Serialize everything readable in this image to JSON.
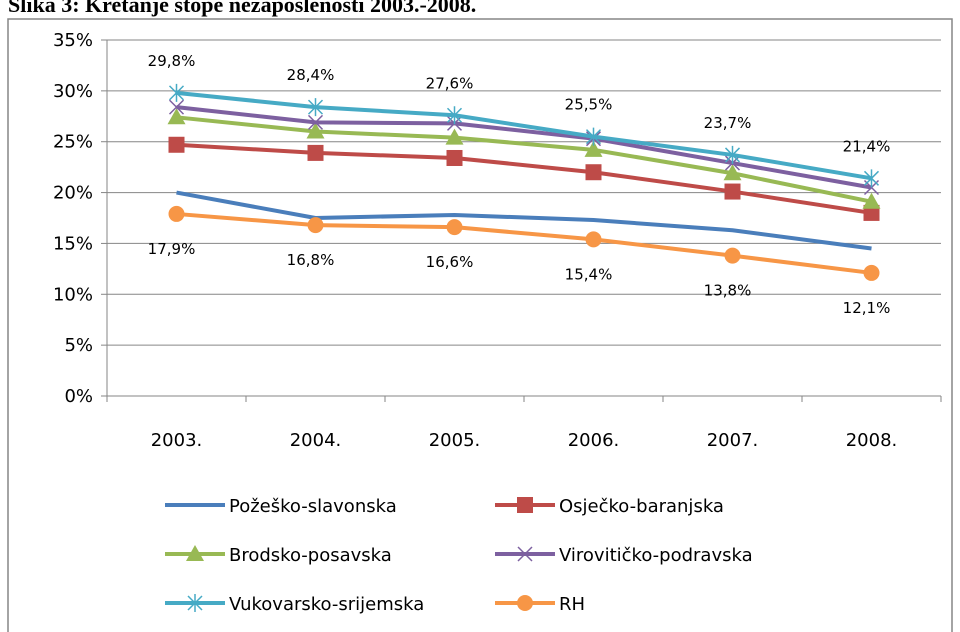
{
  "chart_data": {
    "type": "line",
    "title": "Slika 3: Kretanje stope nezaposlenosti 2003.-2008.",
    "categories": [
      "2003.",
      "2004.",
      "2005.",
      "2006.",
      "2007.",
      "2008."
    ],
    "ylim": [
      0,
      35
    ],
    "yticks": [
      {
        "value": 0,
        "label": "0%"
      },
      {
        "value": 5,
        "label": "5%"
      },
      {
        "value": 10,
        "label": "10%"
      },
      {
        "value": 15,
        "label": "15%"
      },
      {
        "value": 20,
        "label": "20%"
      },
      {
        "value": 25,
        "label": "25%"
      },
      {
        "value": 30,
        "label": "30%"
      },
      {
        "value": 35,
        "label": "35%"
      }
    ],
    "grid": true,
    "legend": "bottom",
    "series": [
      {
        "name": "Požeško-slavonska",
        "color": "#4a7ebb",
        "marker": "none",
        "values": [
          20.0,
          17.5,
          17.8,
          17.3,
          16.3,
          14.5
        ]
      },
      {
        "name": "Osječko-baranjska",
        "color": "#be4b48",
        "marker": "square",
        "values": [
          24.7,
          23.9,
          23.4,
          22.0,
          20.1,
          18.0
        ]
      },
      {
        "name": "Brodsko-posavska",
        "color": "#98b954",
        "marker": "triangle",
        "values": [
          27.4,
          26.0,
          25.4,
          24.2,
          21.9,
          19.1
        ]
      },
      {
        "name": "Virovitičko-podravska",
        "color": "#7d60a0",
        "marker": "x",
        "values": [
          28.4,
          26.9,
          26.8,
          25.3,
          22.9,
          20.5
        ]
      },
      {
        "name": "Vukovarsko-srijemska",
        "color": "#46aac5",
        "marker": "star",
        "values": [
          29.8,
          28.4,
          27.6,
          25.5,
          23.7,
          21.4
        ],
        "value_labels": [
          "29,8%",
          "28,4%",
          "27,6%",
          "25,5%",
          "23,7%",
          "21,4%"
        ],
        "label_position": "above"
      },
      {
        "name": "RH",
        "color": "#f79646",
        "marker": "circle",
        "values": [
          17.9,
          16.8,
          16.6,
          15.4,
          13.8,
          12.1
        ],
        "value_labels": [
          "17,9%",
          "16,8%",
          "16,6%",
          "15,4%",
          "13,8%",
          "12,1%"
        ],
        "label_position": "below"
      }
    ]
  }
}
